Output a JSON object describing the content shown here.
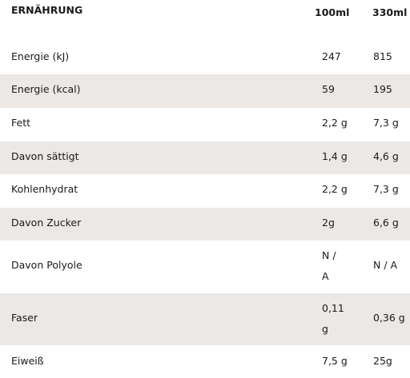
{
  "header": {
    "title": "ERNÄHRUNG",
    "col_100": "100ml",
    "col_330": "330ml"
  },
  "rows": [
    {
      "label": "Energie (kJ)",
      "v100": "247",
      "v330": "815"
    },
    {
      "label": "Energie (kcal)",
      "v100": "59",
      "v330": "195"
    },
    {
      "label": "Fett",
      "v100": "2,2 g",
      "v330": "7,3 g"
    },
    {
      "label": "Davon sättigt",
      "v100": "1,4 g",
      "v330": "4,6 g"
    },
    {
      "label": "Kohlenhydrat",
      "v100": "2,2 g",
      "v330": "7,3 g"
    },
    {
      "label": "Davon Zucker",
      "v100": "2g",
      "v330": "6,6 g"
    },
    {
      "label": "Davon Polyole",
      "v100": "N / A",
      "v330": "N / A"
    },
    {
      "label": "Faser",
      "v100": "0,11 g",
      "v330": "0,36 g"
    },
    {
      "label": "Eiweiß",
      "v100": "7,5 g",
      "v330": "25g"
    }
  ],
  "colors": {
    "shaded_row": "#ece8e6",
    "text": "#1a1a1a"
  }
}
